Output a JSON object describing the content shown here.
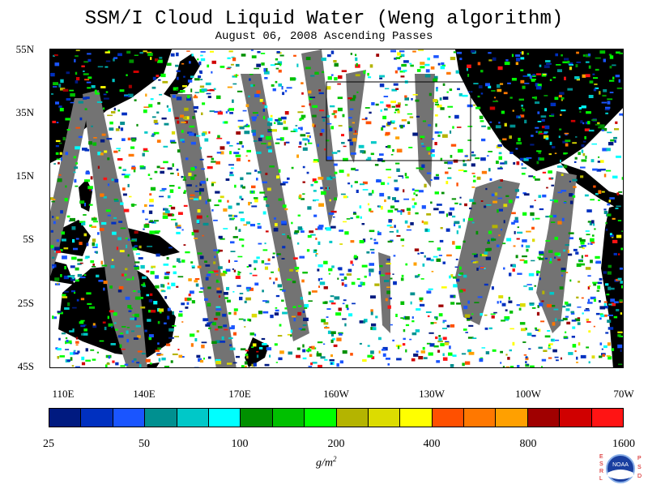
{
  "title": "SSM/I Cloud Liquid Water (Weng algorithm)",
  "subtitle": "August 06, 2008  Ascending Passes",
  "y_axis_labels": [
    "55N",
    "35N",
    "15N",
    "5S",
    "25S",
    "45S"
  ],
  "x_axis_labels": [
    "110E",
    "140E",
    "170E",
    "160W",
    "130W",
    "100W",
    "70W"
  ],
  "colorbar": {
    "colors": [
      "#001a80",
      "#0030c0",
      "#1a55ff",
      "#009090",
      "#00c8c8",
      "#00ffff",
      "#009000",
      "#00c000",
      "#00ff00",
      "#b4b400",
      "#dcdc00",
      "#ffff00",
      "#ff5000",
      "#ff7800",
      "#ffa000",
      "#a00000",
      "#d00000",
      "#ff1414"
    ],
    "tick_labels": [
      "25",
      "50",
      "100",
      "200",
      "400",
      "800",
      "1600"
    ],
    "unit_label": "g/m",
    "unit_superscript": "2"
  },
  "logo": {
    "left_letters": [
      "E",
      "S",
      "R",
      "L"
    ],
    "right_letters": [
      "P",
      "S",
      "D"
    ],
    "emblem_text": "NOAA",
    "accent_color": "#d00000"
  },
  "map_colors": {
    "land": "#000000",
    "missing_swath": "#737373",
    "clear": "#ffffff"
  }
}
